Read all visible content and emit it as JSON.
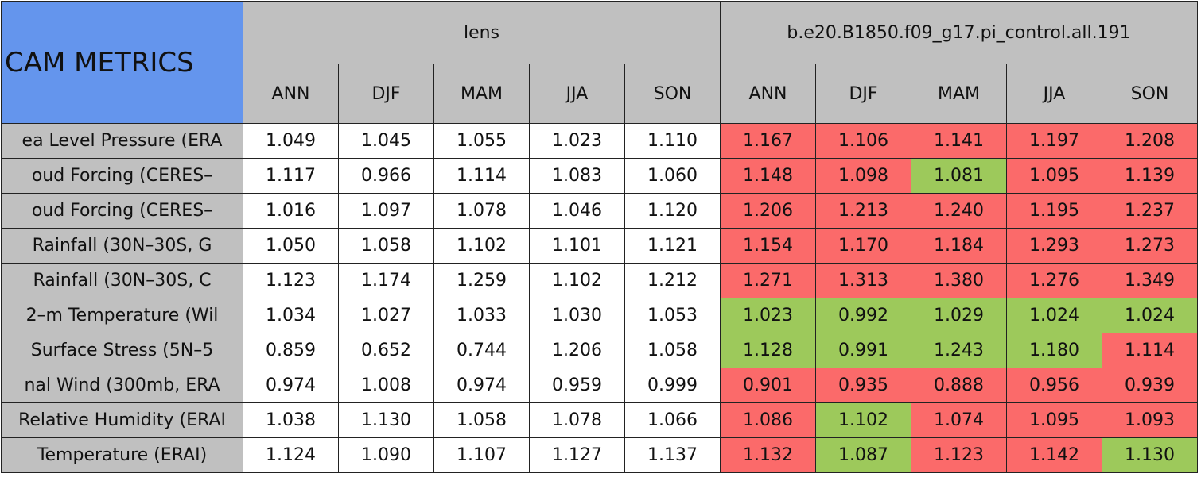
{
  "header": {
    "title": "CAM METRICS",
    "groups": [
      {
        "name": "lens",
        "seasons": [
          "ANN",
          "DJF",
          "MAM",
          "JJA",
          "SON"
        ]
      },
      {
        "name": "b.e20.B1850.f09_g17.pi_control.all.191",
        "seasons": [
          "ANN",
          "DJF",
          "MAM",
          "JJA",
          "SON"
        ]
      }
    ]
  },
  "colors": {
    "r": "#fb6a6a",
    "g": "#9dc95b"
  },
  "rows": [
    {
      "metric": "ea Level Pressure (ERA",
      "lens": [
        "1.049",
        "1.045",
        "1.055",
        "1.023",
        "1.110"
      ],
      "case": [
        "1.167",
        "1.106",
        "1.141",
        "1.197",
        "1.208"
      ],
      "case_fill": [
        "r",
        "r",
        "r",
        "r",
        "r"
      ]
    },
    {
      "metric": "oud Forcing (CERES–",
      "lens": [
        "1.117",
        "0.966",
        "1.114",
        "1.083",
        "1.060"
      ],
      "case": [
        "1.148",
        "1.098",
        "1.081",
        "1.095",
        "1.139"
      ],
      "case_fill": [
        "r",
        "r",
        "g",
        "r",
        "r"
      ]
    },
    {
      "metric": "oud Forcing (CERES–",
      "lens": [
        "1.016",
        "1.097",
        "1.078",
        "1.046",
        "1.120"
      ],
      "case": [
        "1.206",
        "1.213",
        "1.240",
        "1.195",
        "1.237"
      ],
      "case_fill": [
        "r",
        "r",
        "r",
        "r",
        "r"
      ]
    },
    {
      "metric": "Rainfall (30N–30S, G",
      "lens": [
        "1.050",
        "1.058",
        "1.102",
        "1.101",
        "1.121"
      ],
      "case": [
        "1.154",
        "1.170",
        "1.184",
        "1.293",
        "1.273"
      ],
      "case_fill": [
        "r",
        "r",
        "r",
        "r",
        "r"
      ]
    },
    {
      "metric": "Rainfall (30N–30S, C",
      "lens": [
        "1.123",
        "1.174",
        "1.259",
        "1.102",
        "1.212"
      ],
      "case": [
        "1.271",
        "1.313",
        "1.380",
        "1.276",
        "1.349"
      ],
      "case_fill": [
        "r",
        "r",
        "r",
        "r",
        "r"
      ]
    },
    {
      "metric": "2–m Temperature (Wil",
      "lens": [
        "1.034",
        "1.027",
        "1.033",
        "1.030",
        "1.053"
      ],
      "case": [
        "1.023",
        "0.992",
        "1.029",
        "1.024",
        "1.024"
      ],
      "case_fill": [
        "g",
        "g",
        "g",
        "g",
        "g"
      ]
    },
    {
      "metric": "Surface Stress (5N–5",
      "lens": [
        "0.859",
        "0.652",
        "0.744",
        "1.206",
        "1.058"
      ],
      "case": [
        "1.128",
        "0.991",
        "1.243",
        "1.180",
        "1.114"
      ],
      "case_fill": [
        "g",
        "g",
        "g",
        "g",
        "r"
      ]
    },
    {
      "metric": "nal Wind (300mb, ERA",
      "lens": [
        "0.974",
        "1.008",
        "0.974",
        "0.959",
        "0.999"
      ],
      "case": [
        "0.901",
        "0.935",
        "0.888",
        "0.956",
        "0.939"
      ],
      "case_fill": [
        "r",
        "r",
        "r",
        "r",
        "r"
      ]
    },
    {
      "metric": "Relative Humidity (ERAI",
      "lens": [
        "1.038",
        "1.130",
        "1.058",
        "1.078",
        "1.066"
      ],
      "case": [
        "1.086",
        "1.102",
        "1.074",
        "1.095",
        "1.093"
      ],
      "case_fill": [
        "r",
        "g",
        "r",
        "r",
        "r"
      ]
    },
    {
      "metric": "Temperature (ERAI)",
      "lens": [
        "1.124",
        "1.090",
        "1.107",
        "1.127",
        "1.137"
      ],
      "case": [
        "1.132",
        "1.087",
        "1.123",
        "1.142",
        "1.130"
      ],
      "case_fill": [
        "r",
        "g",
        "r",
        "r",
        "g"
      ]
    }
  ]
}
